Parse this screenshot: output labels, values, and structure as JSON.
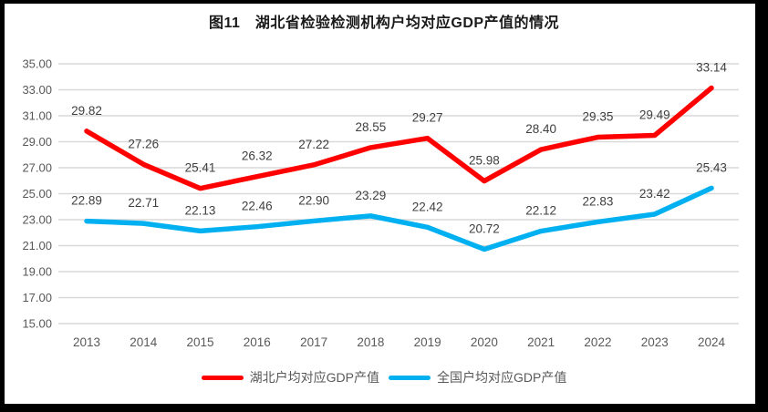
{
  "title": "图11　湖北省检验检测机构户均对应GDP产值的情况",
  "colors": {
    "hubei_line": "#FF0000",
    "national_line": "#00B0F0",
    "gridline": "#D9D9D9",
    "axis_text": "#595959",
    "data_label_text": "#3F3F3F",
    "frame_border": "#000000"
  },
  "chart_data": {
    "type": "line",
    "title": "图11　湖北省检验检测机构户均对应GDP产值的情况",
    "x": [
      "2013",
      "2014",
      "2015",
      "2016",
      "2017",
      "2018",
      "2019",
      "2020",
      "2021",
      "2022",
      "2023",
      "2024"
    ],
    "series": [
      {
        "name": "湖北户均对应GDP产值",
        "color": "#FF0000",
        "values": [
          29.82,
          27.26,
          25.41,
          26.32,
          27.22,
          28.55,
          29.27,
          25.98,
          28.4,
          29.35,
          29.49,
          33.14
        ]
      },
      {
        "name": "全国户均对应GDP产值",
        "color": "#00B0F0",
        "values": [
          22.89,
          22.71,
          22.13,
          22.46,
          22.9,
          23.29,
          22.42,
          20.72,
          22.12,
          22.83,
          23.42,
          25.43
        ]
      }
    ],
    "xlabel": "",
    "ylabel": "",
    "ylim": [
      15,
      35
    ],
    "y_ticks": [
      "35.00",
      "33.00",
      "31.00",
      "29.00",
      "27.00",
      "25.00",
      "23.00",
      "21.00",
      "19.00",
      "17.00",
      "15.00"
    ],
    "grid": true,
    "data_labels": true,
    "legend_position": "bottom"
  },
  "legend": [
    {
      "label": "湖北户均对应GDP产值",
      "color": "#FF0000"
    },
    {
      "label": "全国户均对应GDP产值",
      "color": "#00B0F0"
    }
  ]
}
